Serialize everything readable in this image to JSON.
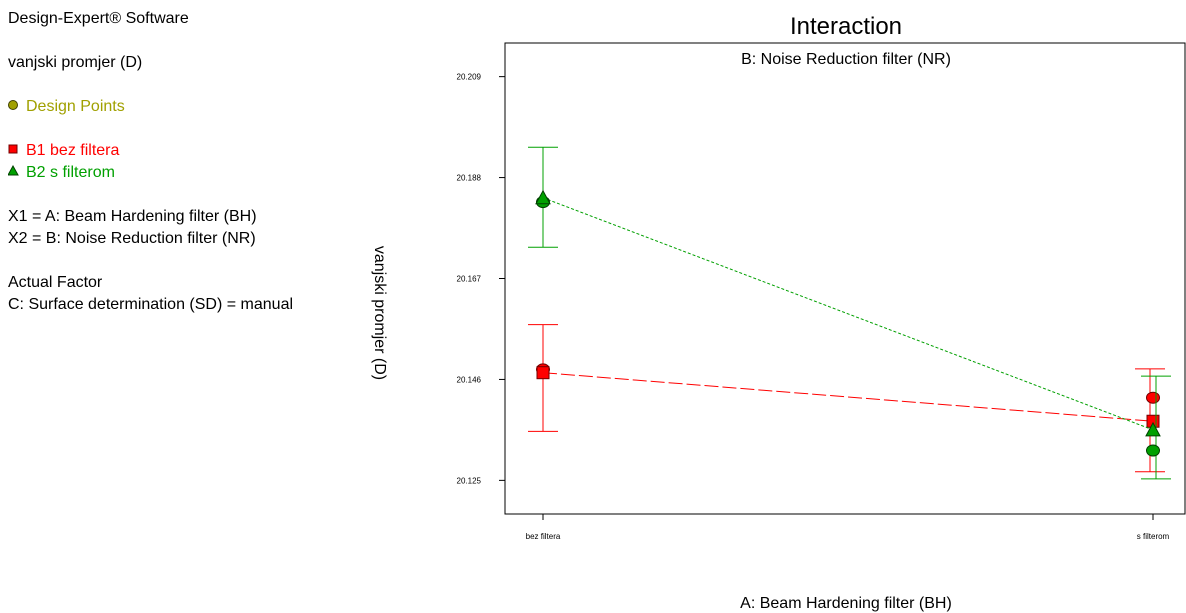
{
  "sidebar": {
    "software": "Design-Expert® Software",
    "response": "vanjski promjer (D)",
    "design_points_label": "Design Points",
    "legend": [
      {
        "label": "B1 bez filtera",
        "color": "#ff0000",
        "marker": "square"
      },
      {
        "label": "B2 s filterom",
        "color": "#00a000",
        "marker": "triangle"
      }
    ],
    "x1": "X1 = A: Beam Hardening filter (BH)",
    "x2": "X2 = B: Noise Reduction filter (NR)",
    "actual_factor_title": "Actual Factor",
    "actual_factor_value": "C: Surface determination (SD) = manual"
  },
  "colors": {
    "design_points": "#a0a000",
    "b1": "#ff0000",
    "b2": "#00a000"
  },
  "chart_data": {
    "type": "line",
    "title": "Interaction",
    "subtitle": "B: Noise Reduction filter (NR)",
    "xlabel": "A: Beam Hardening filter (BH)",
    "ylabel": "vanjski promjer (D)",
    "categories": [
      "bez filtera",
      "s filterom"
    ],
    "yticks": [
      "20.209",
      "20.188",
      "20.167",
      "20.146",
      "20.125"
    ],
    "ylim": [
      20.118,
      20.216
    ],
    "series": [
      {
        "name": "B1 bez filtera",
        "color": "#ff0000",
        "marker": "square",
        "values": [
          20.1474,
          20.1373
        ],
        "ci_low": [
          20.1352,
          20.1268
        ],
        "ci_high": [
          20.1574,
          20.1482
        ],
        "design_points": [
          [
            0,
            20.1481
          ],
          [
            1,
            20.1422
          ]
        ]
      },
      {
        "name": "B2 s filterom",
        "color": "#00a000",
        "marker": "triangle",
        "values": [
          20.1838,
          20.1355
        ],
        "ci_low": [
          20.1735,
          20.1253
        ],
        "ci_high": [
          20.1943,
          20.1467
        ],
        "design_points": [
          [
            0,
            20.1829
          ],
          [
            1,
            20.1312
          ]
        ]
      }
    ]
  }
}
